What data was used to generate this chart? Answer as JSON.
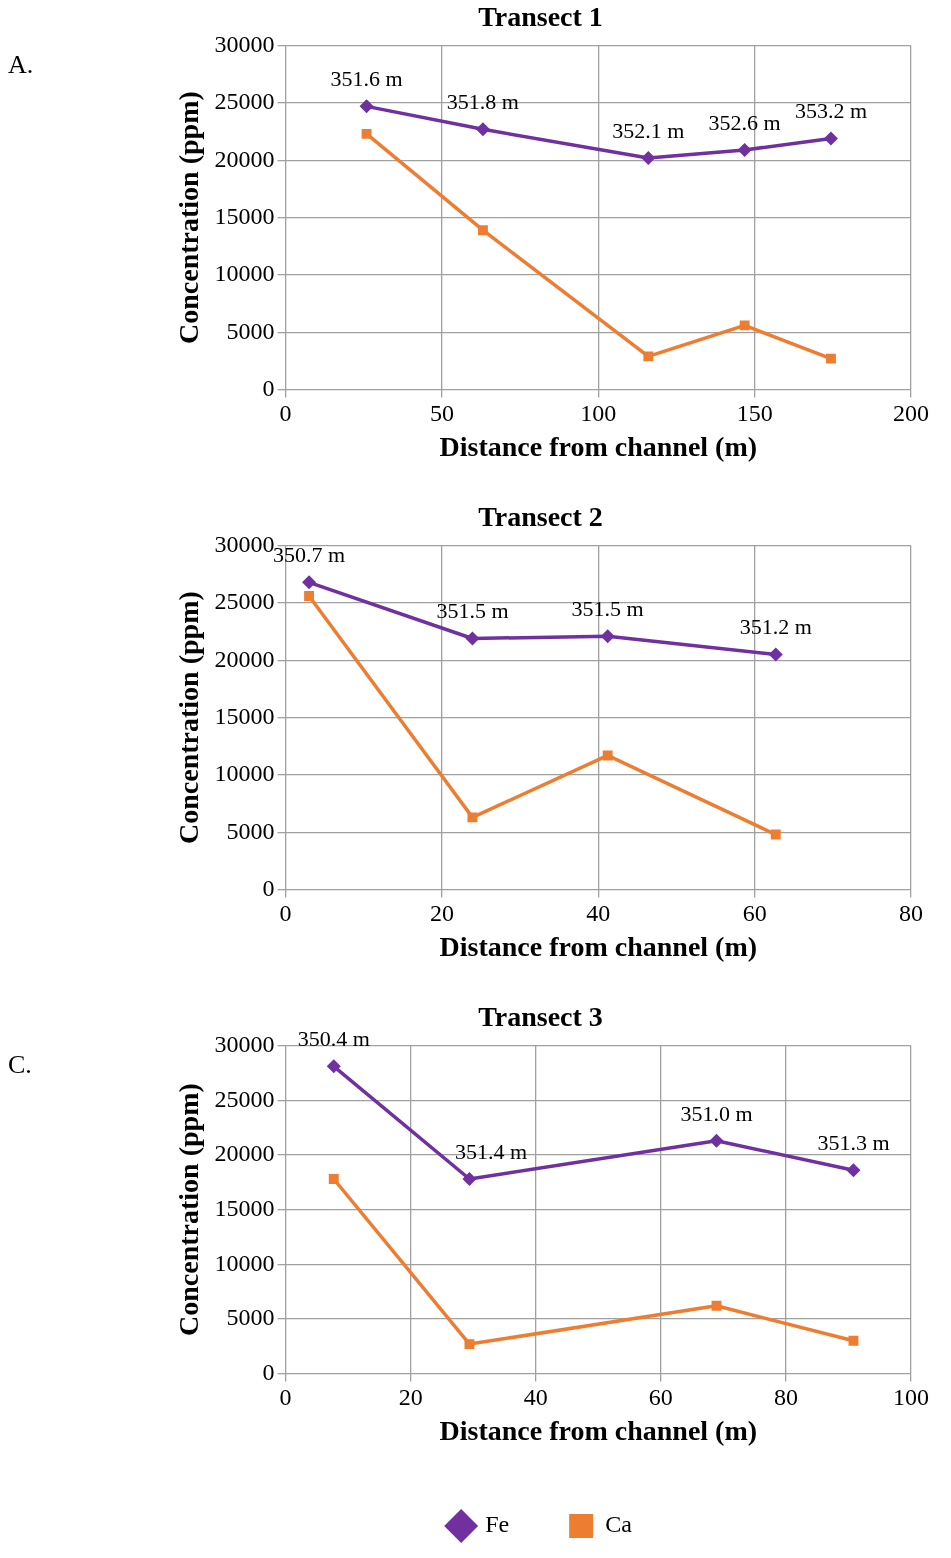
{
  "chart_data": [
    {
      "type": "line",
      "title": "Transect 1",
      "xlabel": "Distance from channel (m)",
      "ylabel": "Concentration (ppm)",
      "xlim": [
        0,
        200
      ],
      "xticks": [
        0,
        50,
        100,
        150,
        200
      ],
      "ylim": [
        0,
        30000
      ],
      "yticks": [
        0,
        5000,
        10000,
        15000,
        20000,
        25000,
        30000
      ],
      "grid": true,
      "legend": false,
      "series": [
        {
          "color": "#7030a0",
          "marker": "diamond",
          "x": [
            25.9,
            63.1,
            116,
            146.8,
            174.4
          ],
          "values": [
            24700,
            22700,
            20200,
            20900,
            21900
          ]
        },
        {
          "color": "#ed7d31",
          "marker": "square",
          "x": [
            25.9,
            63.1,
            116,
            146.8,
            174.4
          ],
          "values": [
            22300,
            13900,
            2900,
            5600,
            2700
          ]
        }
      ],
      "annotations": [
        "A.",
        {
          "text": "351.6 m",
          "x": 25.9,
          "y": 24700
        },
        {
          "text": "351.8 m",
          "x": 63.1,
          "y": 22700
        },
        {
          "text": "352.1 m",
          "x": 116,
          "y": 20200
        },
        {
          "text": "352.6 m",
          "x": 146.8,
          "y": 20900
        },
        {
          "text": "353.2 m",
          "x": 174.4,
          "y": 21900
        }
      ]
    },
    {
      "type": "line",
      "title": "Transect 2",
      "xlabel": "Distance from channel (m)",
      "ylabel": "Concentration (ppm)",
      "xlim": [
        0,
        80
      ],
      "xticks": [
        0,
        20,
        40,
        60,
        80
      ],
      "ylim": [
        0,
        30000
      ],
      "yticks": [
        0,
        5000,
        10000,
        15000,
        20000,
        25000,
        30000
      ],
      "grid": true,
      "legend": false,
      "series": [
        {
          "color": "#7030a0",
          "marker": "diamond",
          "x": [
            3.0,
            23.9,
            41.2,
            62.7
          ],
          "values": [
            26800,
            21900,
            22100,
            20500
          ]
        },
        {
          "color": "#ed7d31",
          "marker": "square",
          "x": [
            3.0,
            23.9,
            41.2,
            62.7
          ],
          "values": [
            25600,
            6300,
            11700,
            4800
          ]
        }
      ],
      "annotations": [
        {
          "text": "350.7 m",
          "x": 3.0,
          "y": 26800
        },
        {
          "text": "351.5 m",
          "x": 23.9,
          "y": 21900
        },
        {
          "text": "351.5 m",
          "x": 41.2,
          "y": 22100
        },
        {
          "text": "351.2 m",
          "x": 62.7,
          "y": 20500
        }
      ]
    },
    {
      "type": "line",
      "title": "Transect 3",
      "xlabel": "Distance from channel (m)",
      "ylabel": "Concentration (ppm)",
      "xlim": [
        0,
        100
      ],
      "xticks": [
        0,
        20,
        40,
        60,
        80,
        100
      ],
      "ylim": [
        0,
        30000
      ],
      "yticks": [
        0,
        5000,
        10000,
        15000,
        20000,
        25000,
        30000
      ],
      "grid": true,
      "legend": "bottom",
      "series": [
        {
          "name": "Fe",
          "color": "#7030a0",
          "marker": "diamond",
          "x": [
            7.7,
            29.4,
            68.9,
            90.8
          ],
          "values": [
            28100,
            17800,
            21300,
            18600
          ]
        },
        {
          "name": "Ca",
          "color": "#ed7d31",
          "marker": "square",
          "x": [
            7.7,
            29.4,
            68.9,
            90.8
          ],
          "values": [
            17800,
            2700,
            6200,
            3000
          ]
        }
      ],
      "annotations": [
        "C.",
        {
          "text": "350.4 m",
          "x": 7.7,
          "y": 28100
        },
        {
          "text": "351.4 m",
          "x": 29.4,
          "y": 17800
        },
        {
          "text": "351.0 m",
          "x": 68.9,
          "y": 21300
        },
        {
          "text": "351.3 m",
          "x": 90.8,
          "y": 18600
        }
      ]
    }
  ]
}
